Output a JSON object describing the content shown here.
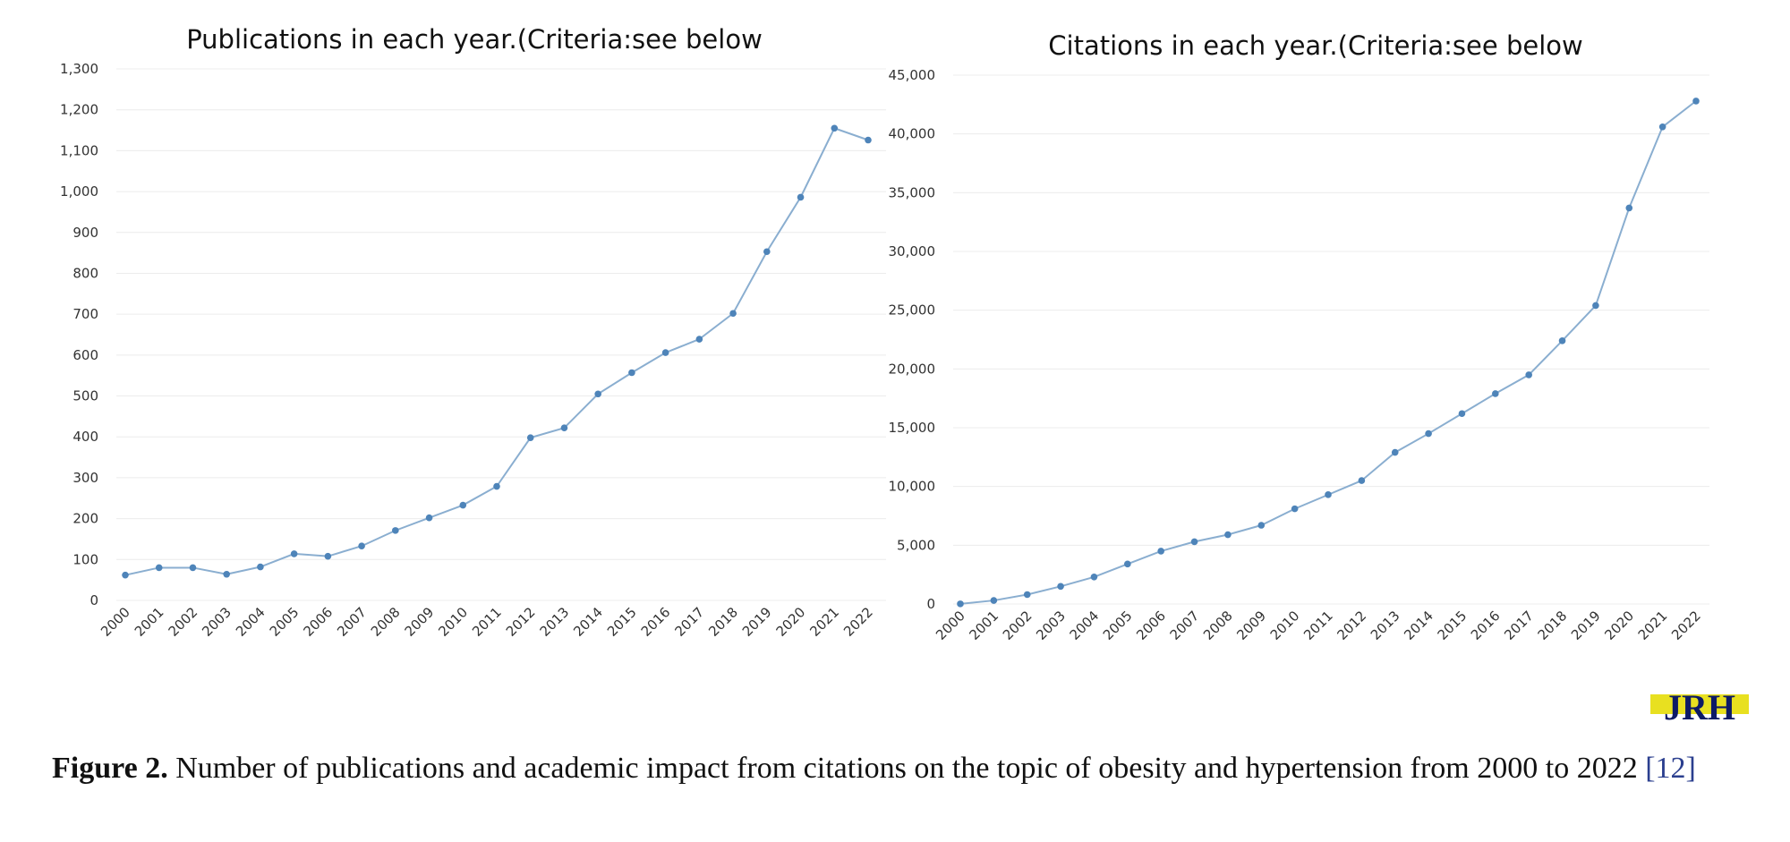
{
  "chart_data": [
    {
      "type": "line",
      "title": "Publications in each year.(Criteria:see below",
      "xlabel": "",
      "ylabel": "",
      "categories": [
        "2000",
        "2001",
        "2002",
        "2003",
        "2004",
        "2005",
        "2006",
        "2007",
        "2008",
        "2009",
        "2010",
        "2011",
        "2012",
        "2013",
        "2014",
        "2015",
        "2016",
        "2017",
        "2018",
        "2019",
        "2020",
        "2021",
        "2022"
      ],
      "series": [
        {
          "values": [
            62,
            80,
            80,
            64,
            82,
            114,
            108,
            133,
            171,
            202,
            233,
            279,
            398,
            422,
            505,
            557,
            606,
            639,
            702,
            853,
            986,
            1155,
            1126
          ]
        }
      ],
      "yticks": [
        "0",
        "100",
        "200",
        "300",
        "400",
        "500",
        "600",
        "700",
        "800",
        "900",
        "1,000",
        "1,100",
        "1,200",
        "1,300"
      ],
      "ylim": [
        0,
        1300
      ],
      "grid": true,
      "color": "#8aaed0",
      "marker_color": "#4e84b9"
    },
    {
      "type": "line",
      "title": "Citations in each year.(Criteria:see below",
      "xlabel": "",
      "ylabel": "",
      "categories": [
        "2000",
        "2001",
        "2002",
        "2003",
        "2004",
        "2005",
        "2006",
        "2007",
        "2008",
        "2009",
        "2010",
        "2011",
        "2012",
        "2013",
        "2014",
        "2015",
        "2016",
        "2017",
        "2018",
        "2019",
        "2020",
        "2021",
        "2022"
      ],
      "series": [
        {
          "values": [
            10,
            300,
            800,
            1500,
            2300,
            3400,
            4500,
            5300,
            5900,
            6700,
            8100,
            9300,
            10500,
            12900,
            14500,
            16200,
            17900,
            19500,
            22400,
            25400,
            33700,
            40600,
            42800
          ]
        }
      ],
      "yticks": [
        "0",
        "5,000",
        "10,000",
        "15,000",
        "20,000",
        "25,000",
        "30,000",
        "35,000",
        "40,000",
        "45,000"
      ],
      "ylim": [
        0,
        45000
      ],
      "grid": true,
      "color": "#8aaed0",
      "marker_color": "#4e84b9"
    }
  ],
  "logo": {
    "text": "JRH",
    "color": "#0d1a66",
    "accent": "#e8e020"
  },
  "caption": {
    "label": "Figure 2.",
    "text": " Number of publications and academic impact from citations on the topic of obesity and hypertension from 2000 to 2022 ",
    "reference": "[12]"
  }
}
